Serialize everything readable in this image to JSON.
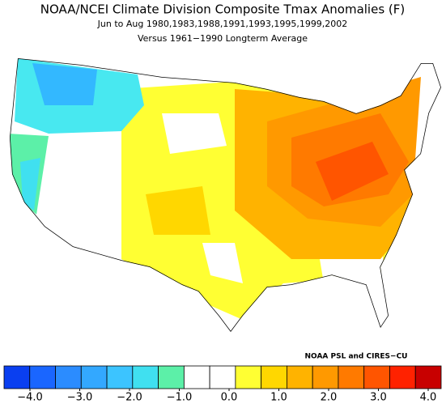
{
  "header": {
    "title": "NOAA/NCEI Climate Division Composite Tmax Anomalies (F)",
    "subtitle": "Jun to Aug  1980,1983,1988,1991,1993,1995,1999,2002",
    "note": "Versus 1961−1990 Longterm Average"
  },
  "credit": "NOAA PSL and CIRES−CU",
  "colorbar": {
    "colors": [
      "#0a3ff0",
      "#1a66ff",
      "#2b8cff",
      "#33a8ff",
      "#3cc4ff",
      "#40e0f0",
      "#5cf0a8",
      "#ffffff",
      "#ffffff",
      "#ffff33",
      "#ffd700",
      "#ffb300",
      "#ff9900",
      "#ff7a00",
      "#ff5500",
      "#ff2200",
      "#c80000"
    ],
    "ticks": [
      {
        "value": -4,
        "label": "−4.0"
      },
      {
        "value": -3,
        "label": "−3.0"
      },
      {
        "value": -2,
        "label": "−2.0"
      },
      {
        "value": -1,
        "label": "−1.0"
      },
      {
        "value": 0,
        "label": "0.0"
      },
      {
        "value": 1,
        "label": "1.0"
      },
      {
        "value": 2,
        "label": "2.0"
      },
      {
        "value": 3,
        "label": "3.0"
      },
      {
        "value": 4,
        "label": "4.0"
      }
    ]
  }
}
